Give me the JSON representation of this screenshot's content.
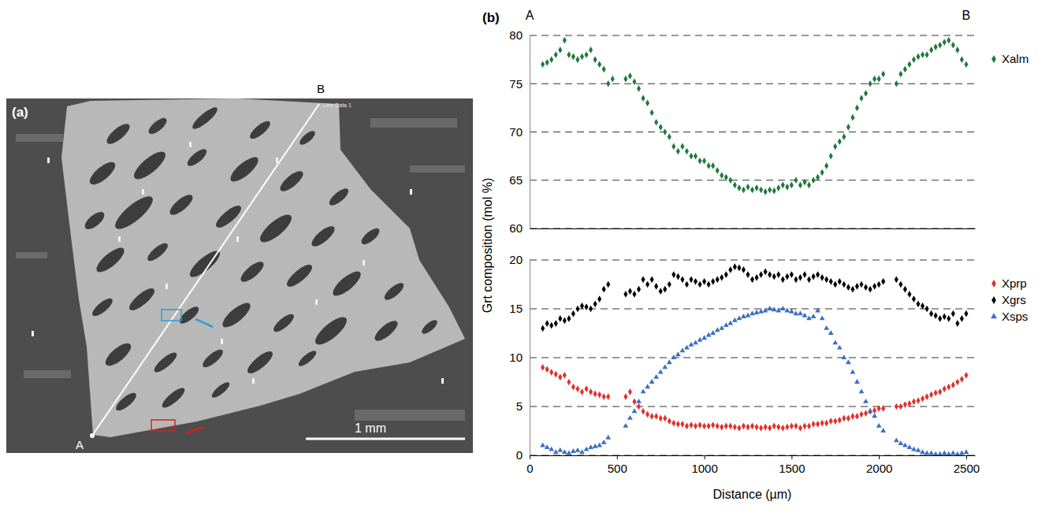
{
  "image": {
    "panel_label": "(a)",
    "point_labels": [
      "A",
      "B"
    ],
    "line_label": "Line Data 1",
    "scale_bar": "1 mm"
  },
  "chart_data": [
    {
      "type": "scatter",
      "panel_label": "(b)",
      "annotations": [
        {
          "text": "A",
          "x": 0
        },
        {
          "text": "B",
          "x": 2500
        }
      ],
      "x": [
        75,
        100,
        125,
        150,
        175,
        200,
        225,
        250,
        275,
        300,
        325,
        350,
        375,
        400,
        425,
        450,
        475,
        500,
        525,
        550,
        575,
        600,
        625,
        650,
        675,
        700,
        725,
        750,
        775,
        800,
        825,
        850,
        875,
        900,
        925,
        950,
        975,
        1000,
        1025,
        1050,
        1075,
        1100,
        1125,
        1150,
        1175,
        1200,
        1225,
        1250,
        1275,
        1300,
        1325,
        1350,
        1375,
        1400,
        1425,
        1450,
        1475,
        1500,
        1525,
        1550,
        1575,
        1600,
        1625,
        1650,
        1675,
        1700,
        1725,
        1750,
        1775,
        1800,
        1825,
        1850,
        1875,
        1900,
        1925,
        1950,
        1975,
        2000,
        2025,
        2050,
        2075,
        2100,
        2125,
        2150,
        2175,
        2200,
        2225,
        2250,
        2275,
        2300,
        2325,
        2350,
        2375,
        2400,
        2425,
        2450,
        2475,
        2500
      ],
      "xlim": [
        0,
        2550
      ],
      "ylim": [
        60,
        80
      ],
      "yticks": [
        60,
        65,
        70,
        75,
        80
      ],
      "grid": true,
      "legend": "right",
      "tick_labels": "y",
      "series": [
        {
          "name": "Xalm",
          "color": "#1f7a3a",
          "marker": "diamond",
          "values": [
            77,
            77.2,
            77.5,
            78,
            78.5,
            79.5,
            78,
            77.8,
            77.5,
            77.8,
            78,
            78.5,
            77.5,
            77,
            76.5,
            75,
            75.5,
            null,
            null,
            75.5,
            75.8,
            75.2,
            74.5,
            73.5,
            73,
            72,
            71,
            70.5,
            70,
            69.5,
            68.5,
            68,
            68.5,
            68,
            67.5,
            67.5,
            67,
            67,
            66.5,
            66.5,
            66,
            65.5,
            65.3,
            65,
            64.5,
            64.2,
            64,
            64.3,
            64,
            64.2,
            64,
            63.8,
            64,
            63.9,
            64.2,
            64.5,
            64.3,
            64.5,
            65,
            64.5,
            64.8,
            64.5,
            65,
            65.3,
            65.8,
            66.5,
            67.5,
            68.5,
            69,
            69.5,
            70.5,
            71.5,
            72.5,
            73.5,
            74,
            75,
            75.5,
            75.5,
            76,
            null,
            null,
            75,
            76,
            76.5,
            77,
            77.5,
            77.8,
            78,
            78,
            78.5,
            78.8,
            79,
            79.3,
            79.5,
            79,
            78.5,
            77.5,
            77
          ]
        }
      ]
    },
    {
      "type": "scatter",
      "x": [
        75,
        100,
        125,
        150,
        175,
        200,
        225,
        250,
        275,
        300,
        325,
        350,
        375,
        400,
        425,
        450,
        475,
        500,
        525,
        550,
        575,
        600,
        625,
        650,
        675,
        700,
        725,
        750,
        775,
        800,
        825,
        850,
        875,
        900,
        925,
        950,
        975,
        1000,
        1025,
        1050,
        1075,
        1100,
        1125,
        1150,
        1175,
        1200,
        1225,
        1250,
        1275,
        1300,
        1325,
        1350,
        1375,
        1400,
        1425,
        1450,
        1475,
        1500,
        1525,
        1550,
        1575,
        1600,
        1625,
        1650,
        1675,
        1700,
        1725,
        1750,
        1775,
        1800,
        1825,
        1850,
        1875,
        1900,
        1925,
        1950,
        1975,
        2000,
        2025,
        2050,
        2075,
        2100,
        2125,
        2150,
        2175,
        2200,
        2225,
        2250,
        2275,
        2300,
        2325,
        2350,
        2375,
        2400,
        2425,
        2450,
        2475,
        2500
      ],
      "xlim": [
        0,
        2550
      ],
      "xticks": [
        0,
        500,
        1000,
        1500,
        2000,
        2500
      ],
      "ylim": [
        0,
        20
      ],
      "yticks": [
        0,
        5,
        10,
        15,
        20
      ],
      "xlabel": "Distance (µm)",
      "ylabel": "Grt composition (mol %)",
      "grid": true,
      "legend": "right",
      "series": [
        {
          "name": "Xprp",
          "color": "#e0322e",
          "marker": "diamond",
          "values": [
            9,
            8.8,
            8.5,
            8.3,
            8,
            8.2,
            7.5,
            7,
            6.8,
            6.5,
            6.8,
            6.5,
            6.3,
            6.2,
            6,
            6,
            null,
            null,
            null,
            6,
            6.5,
            5.5,
            5,
            4.5,
            4.2,
            4,
            4,
            3.8,
            3.8,
            3.5,
            3.3,
            3.2,
            3.2,
            3,
            3.1,
            3,
            3.1,
            3,
            3,
            3.1,
            3,
            2.9,
            3,
            3,
            2.9,
            2.8,
            3,
            2.9,
            3,
            2.9,
            2.8,
            2.9,
            2.8,
            3,
            2.9,
            2.8,
            2.9,
            3,
            3,
            2.8,
            3,
            3,
            3.2,
            3.2,
            3.3,
            3.3,
            3.5,
            3.5,
            3.6,
            3.8,
            3.8,
            4,
            4,
            4.2,
            4.3,
            4.5,
            4.6,
            4.8,
            4.8,
            null,
            null,
            5,
            5,
            5.2,
            5.3,
            5.5,
            5.6,
            5.8,
            6,
            6.2,
            6.4,
            6.5,
            6.8,
            7,
            7.2,
            7.5,
            7.8,
            8.2
          ]
        },
        {
          "name": "Xgrs",
          "color": "#000000",
          "marker": "diamond",
          "values": [
            13,
            13.5,
            13.3,
            13.5,
            14,
            13.8,
            14,
            14.5,
            15,
            15.3,
            15.2,
            15,
            15.5,
            16,
            17,
            17.5,
            null,
            null,
            null,
            16.5,
            16.8,
            16.5,
            17,
            18,
            17.5,
            18,
            17.3,
            16.8,
            17,
            17.5,
            18.5,
            18.3,
            18,
            17.5,
            18,
            17.8,
            17.5,
            17.8,
            17.5,
            17.8,
            18,
            18.2,
            18.5,
            19,
            19.3,
            19.2,
            19,
            18.5,
            18,
            18.2,
            18.5,
            18.8,
            18.5,
            18.3,
            18.5,
            18,
            18.3,
            18.5,
            18,
            18.2,
            18.5,
            18,
            18.3,
            18.5,
            18.2,
            18,
            17.8,
            17.5,
            17.8,
            17.5,
            17.2,
            17,
            17.3,
            17.5,
            17.2,
            17,
            17.3,
            17.5,
            17.8,
            null,
            null,
            18,
            17.5,
            17,
            16.5,
            16,
            15.5,
            15.3,
            15,
            14.5,
            14.3,
            14,
            14.2,
            14,
            14.5,
            13.5,
            14,
            14.5
          ]
        },
        {
          "name": "Xsps",
          "color": "#3b6fc4",
          "marker": "triangle",
          "values": [
            1,
            0.8,
            0.6,
            0.3,
            0.5,
            0.3,
            0.2,
            0.4,
            0.5,
            0.3,
            0.6,
            0.8,
            0.9,
            1,
            1.3,
            1.8,
            null,
            null,
            null,
            3,
            3.8,
            4.5,
            5.5,
            6.5,
            7,
            7.5,
            8,
            8.5,
            9,
            9.5,
            10,
            10.3,
            10.7,
            11,
            11.3,
            11.5,
            11.8,
            12,
            12.3,
            12.5,
            12.8,
            13,
            13.3,
            13.5,
            13.8,
            14,
            14.2,
            14.3,
            14.5,
            14.6,
            14.7,
            14.8,
            15,
            14.9,
            14.8,
            15,
            14.8,
            14.7,
            14.5,
            14.5,
            14.3,
            14,
            14.2,
            14.8,
            14,
            13,
            12.5,
            11.5,
            11,
            10,
            9.5,
            8.5,
            7.5,
            6.5,
            5.5,
            4.5,
            4,
            3,
            2.5,
            null,
            null,
            1.5,
            1.2,
            1,
            0.8,
            0.6,
            0.5,
            0.3,
            0.2,
            0.2,
            0.1,
            0.1,
            0.2,
            0.1,
            0.2,
            0.1,
            0.2,
            0.3
          ]
        }
      ]
    }
  ]
}
